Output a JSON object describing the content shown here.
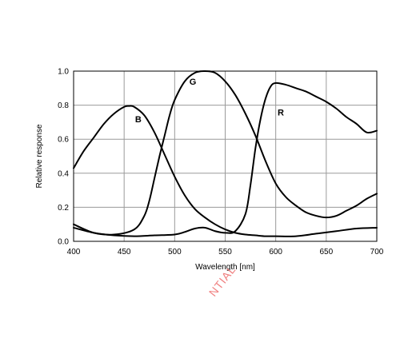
{
  "chart_data": {
    "type": "line",
    "title": "",
    "xlabel": "Wavelength [nm]",
    "ylabel": "Relative response",
    "xlim": [
      400,
      700
    ],
    "ylim": [
      0,
      1.0
    ],
    "xticks": [
      400,
      450,
      500,
      550,
      600,
      650,
      700
    ],
    "yticks": [
      0.0,
      0.2,
      0.4,
      0.6,
      0.8,
      1.0
    ],
    "xtick_labels": [
      "400",
      "450",
      "500",
      "550",
      "600",
      "650",
      "700"
    ],
    "ytick_labels": [
      "0.0",
      "0.2",
      "0.4",
      "0.6",
      "0.8",
      "1.0"
    ],
    "grid": true,
    "legend": "none",
    "series": [
      {
        "name": "B",
        "x": [
          400,
          410,
          420,
          430,
          440,
          450,
          455,
          460,
          470,
          480,
          490,
          500,
          510,
          520,
          530,
          540,
          550,
          560,
          570,
          580,
          590,
          600,
          620,
          640,
          660,
          680,
          700
        ],
        "values": [
          0.43,
          0.53,
          0.61,
          0.69,
          0.75,
          0.79,
          0.795,
          0.79,
          0.74,
          0.64,
          0.51,
          0.38,
          0.27,
          0.19,
          0.14,
          0.1,
          0.07,
          0.05,
          0.04,
          0.035,
          0.03,
          0.03,
          0.03,
          0.045,
          0.06,
          0.075,
          0.08
        ]
      },
      {
        "name": "G",
        "x": [
          400,
          420,
          440,
          460,
          470,
          475,
          480,
          485,
          490,
          495,
          500,
          510,
          520,
          530,
          540,
          550,
          560,
          570,
          580,
          590,
          600,
          610,
          620,
          630,
          640,
          650,
          660,
          670,
          680,
          690,
          700
        ],
        "values": [
          0.1,
          0.05,
          0.04,
          0.07,
          0.15,
          0.24,
          0.37,
          0.5,
          0.62,
          0.74,
          0.83,
          0.94,
          0.99,
          1.0,
          0.99,
          0.94,
          0.86,
          0.75,
          0.62,
          0.47,
          0.34,
          0.26,
          0.21,
          0.17,
          0.15,
          0.14,
          0.15,
          0.18,
          0.21,
          0.25,
          0.28
        ]
      },
      {
        "name": "R",
        "x": [
          400,
          420,
          440,
          460,
          480,
          500,
          510,
          520,
          530,
          540,
          550,
          560,
          570,
          575,
          580,
          585,
          590,
          595,
          600,
          610,
          620,
          630,
          640,
          650,
          660,
          670,
          680,
          690,
          700
        ],
        "values": [
          0.08,
          0.05,
          0.035,
          0.03,
          0.035,
          0.04,
          0.055,
          0.075,
          0.08,
          0.06,
          0.05,
          0.06,
          0.16,
          0.33,
          0.55,
          0.72,
          0.84,
          0.91,
          0.93,
          0.92,
          0.9,
          0.88,
          0.85,
          0.82,
          0.78,
          0.73,
          0.69,
          0.64,
          0.65
        ]
      }
    ],
    "annotations": [
      "B",
      "G",
      "R"
    ]
  },
  "watermark": {
    "text": "NTIAL",
    "color": "#f08080"
  }
}
